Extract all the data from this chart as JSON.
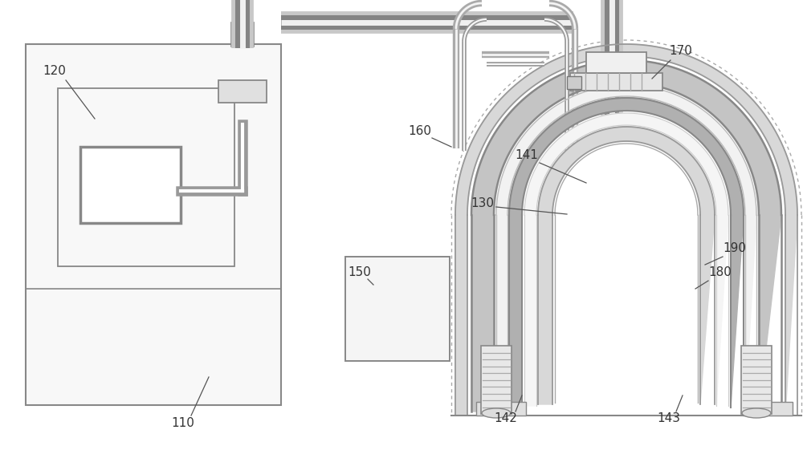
{
  "bg_color": "#ffffff",
  "lc": "#888888",
  "dc": "#666666",
  "lgt": "#aaaaaa",
  "label_fs": 11,
  "label_color": "#333333",
  "line_color": "#555555"
}
